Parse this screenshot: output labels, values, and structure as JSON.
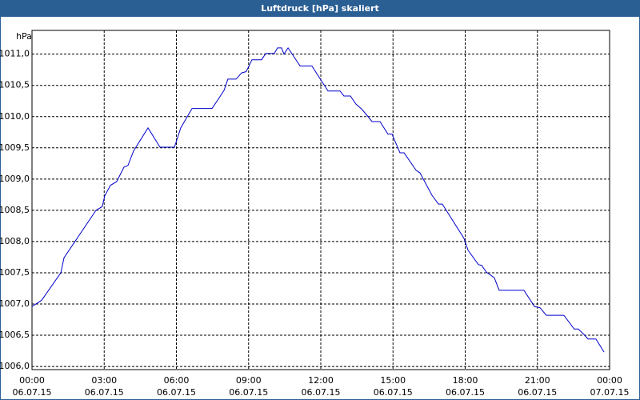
{
  "chart_data": {
    "type": "line",
    "title": "Luftdruck [hPa] skaliert",
    "ylabel": "hPa",
    "x": [
      0,
      0.4,
      1.2,
      1.33,
      2.66,
      2.92,
      3.02,
      3.26,
      3.52,
      3.82,
      3.99,
      4.22,
      4.82,
      5.32,
      5.92,
      6.18,
      6.65,
      7.48,
      7.81,
      7.98,
      8.14,
      8.48,
      8.71,
      8.9,
      9.14,
      9.54,
      9.71,
      10.07,
      10.2,
      10.37,
      10.47,
      10.64,
      11.14,
      11.63,
      12.3,
      12.8,
      12.96,
      13.23,
      13.46,
      13.7,
      13.96,
      14.13,
      14.46,
      14.79,
      14.96,
      15.29,
      15.46,
      15.96,
      16.12,
      16.62,
      16.89,
      17.05,
      17.95,
      18.12,
      18.55,
      18.68,
      18.88,
      19.21,
      19.41,
      20.44,
      20.88,
      21.11,
      21.37,
      22.1,
      22.53,
      22.7,
      22.94,
      23.1,
      23.43,
      23.77
    ],
    "series": [
      {
        "name": "Luftdruck",
        "color": "#0000cc",
        "values": [
          1006.96,
          1007.06,
          1007.5,
          1007.74,
          1008.5,
          1008.56,
          1008.73,
          1008.9,
          1008.96,
          1009.19,
          1009.22,
          1009.45,
          1009.82,
          1009.51,
          1009.51,
          1009.82,
          1010.13,
          1010.13,
          1010.32,
          1010.42,
          1010.6,
          1010.6,
          1010.7,
          1010.72,
          1010.91,
          1010.91,
          1011.01,
          1011.01,
          1011.1,
          1011.1,
          1011.0,
          1011.1,
          1010.81,
          1010.81,
          1010.41,
          1010.41,
          1010.33,
          1010.33,
          1010.2,
          1010.12,
          1010.0,
          1009.92,
          1009.92,
          1009.72,
          1009.72,
          1009.42,
          1009.42,
          1009.14,
          1009.1,
          1008.74,
          1008.6,
          1008.6,
          1008.05,
          1007.86,
          1007.63,
          1007.62,
          1007.51,
          1007.42,
          1007.22,
          1007.22,
          1006.96,
          1006.94,
          1006.82,
          1006.82,
          1006.6,
          1006.6,
          1006.51,
          1006.44,
          1006.44,
          1006.23
        ]
      }
    ],
    "xlim": [
      0,
      24
    ],
    "xticks": [
      {
        "value": 0,
        "label": "00:00"
      },
      {
        "value": 3,
        "label": "03:00"
      },
      {
        "value": 6,
        "label": "06:00"
      },
      {
        "value": 9,
        "label": "09:00"
      },
      {
        "value": 12,
        "label": "12:00"
      },
      {
        "value": 15,
        "label": "15:00"
      },
      {
        "value": 18,
        "label": "18:00"
      },
      {
        "value": 21,
        "label": "21:00"
      },
      {
        "value": 24,
        "label": "00:00"
      }
    ],
    "xtick_dates": [
      "06.07.15",
      "06.07.15",
      "06.07.15",
      "06.07.15",
      "06.07.15",
      "06.07.15",
      "06.07.15",
      "06.07.15",
      "07.07.15"
    ],
    "ylim": [
      1005.95,
      1011.38
    ],
    "yticks": [
      {
        "value": 1006,
        "label": "1006,0"
      },
      {
        "value": 1006.5,
        "label": "1006,5"
      },
      {
        "value": 1007,
        "label": "1007,0"
      },
      {
        "value": 1007.5,
        "label": "1007,5"
      },
      {
        "value": 1008,
        "label": "1008,0"
      },
      {
        "value": 1008.5,
        "label": "1008,5"
      },
      {
        "value": 1009,
        "label": "1009,0"
      },
      {
        "value": 1009.5,
        "label": "1009,5"
      },
      {
        "value": 1010,
        "label": "1010,0"
      },
      {
        "value": 1010.5,
        "label": "1010,5"
      },
      {
        "value": 1011,
        "label": "1011,0"
      }
    ],
    "grid": true
  }
}
